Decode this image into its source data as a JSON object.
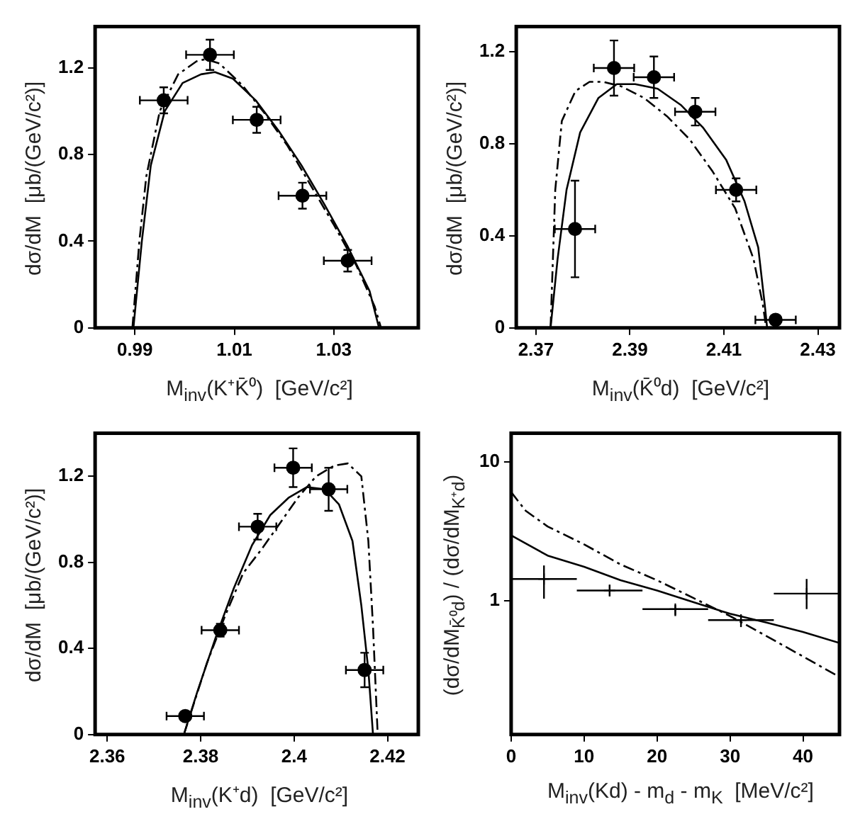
{
  "chart_data": [
    {
      "type": "scatter",
      "xlabel": "M$_{inv}$(K⁺K̄⁰)  [GeV/c²]",
      "ylabel": "dσ/dM  [μb/(GeV/c²)]",
      "xlim": [
        0.982,
        1.047
      ],
      "ylim": [
        0,
        1.39
      ],
      "xticks": [
        0.99,
        1.01,
        1.03
      ],
      "yticks": [
        0,
        0.4,
        0.8,
        1.2
      ],
      "grid": false,
      "legend": false,
      "series": [
        {
          "type": "scatter",
          "color": "#000000",
          "marker": "circle",
          "x": [
            0.9958,
            1.0051,
            1.0145,
            1.0237,
            1.0328
          ],
          "values": [
            1.05,
            1.26,
            0.96,
            0.61,
            0.31
          ],
          "errors": [
            0.06,
            0.07,
            0.06,
            0.06,
            0.05
          ],
          "xerrors": [
            0.0048,
            0.0048,
            0.0048,
            0.0048,
            0.0048
          ]
        },
        {
          "type": "line",
          "color": "#000000",
          "marker": "none",
          "line_style": "solid",
          "x": [
            0.9897,
            0.9914,
            0.9932,
            0.996,
            0.9996,
            1.0033,
            1.0061,
            1.0097,
            1.0143,
            1.0189,
            1.0235,
            1.0281,
            1.0327,
            1.0372,
            1.0391
          ],
          "values": [
            0,
            0.4,
            0.75,
            1.0,
            1.13,
            1.17,
            1.18,
            1.15,
            1.05,
            0.91,
            0.75,
            0.57,
            0.38,
            0.17,
            0
          ]
        },
        {
          "type": "line",
          "color": "#000000",
          "marker": "none",
          "line_style": "dashed",
          "x": [
            0.9895,
            0.9909,
            0.9923,
            0.995,
            0.9987,
            1.0024,
            1.0042,
            1.007,
            1.0116,
            1.0161,
            1.0207,
            1.0253,
            1.0299,
            1.0345,
            1.0382,
            1.0395
          ],
          "values": [
            0,
            0.4,
            0.7,
            1.0,
            1.17,
            1.23,
            1.24,
            1.22,
            1.12,
            0.99,
            0.84,
            0.66,
            0.48,
            0.29,
            0.1,
            0
          ]
        }
      ]
    },
    {
      "type": "scatter",
      "xlabel": "M$_{inv}$(K̄⁰d)  [GeV/c²]",
      "ylabel": "dσ/dM  [μb/(GeV/c²)]",
      "xlim": [
        2.3658,
        2.4346
      ],
      "ylim": [
        0,
        1.31
      ],
      "xticks": [
        2.37,
        2.39,
        2.41,
        2.43
      ],
      "yticks": [
        0,
        0.4,
        0.8,
        1.2
      ],
      "grid": false,
      "legend": false,
      "series": [
        {
          "type": "scatter",
          "color": "#000000",
          "marker": "circle",
          "x": [
            2.3783,
            2.3866,
            2.3951,
            2.4039,
            2.4126,
            2.421
          ],
          "values": [
            0.43,
            1.13,
            1.09,
            0.94,
            0.6,
            0.035
          ],
          "errors": [
            0.21,
            0.12,
            0.09,
            0.06,
            0.05,
            0.01
          ],
          "xerrors": [
            0.0043,
            0.0043,
            0.0043,
            0.0043,
            0.0043,
            0.0043
          ]
        },
        {
          "type": "line",
          "color": "#000000",
          "marker": "none",
          "line_style": "solid",
          "x": [
            2.3731,
            2.3746,
            2.3765,
            2.3794,
            2.3833,
            2.3872,
            2.3911,
            2.3959,
            2.4008,
            2.4056,
            2.4105,
            2.4144,
            2.4173,
            2.4187,
            2.4192
          ],
          "values": [
            0,
            0.3,
            0.6,
            0.85,
            1.0,
            1.06,
            1.06,
            1.04,
            0.97,
            0.87,
            0.73,
            0.55,
            0.35,
            0.1,
            0
          ]
        },
        {
          "type": "line",
          "color": "#000000",
          "marker": "none",
          "line_style": "dashed",
          "x": [
            2.3731,
            2.3741,
            2.3755,
            2.3784,
            2.3814,
            2.3843,
            2.3882,
            2.393,
            2.3979,
            2.4027,
            2.4076,
            2.4124,
            2.4163,
            2.4183,
            2.419
          ],
          "values": [
            0,
            0.6,
            0.9,
            1.03,
            1.07,
            1.07,
            1.05,
            1.0,
            0.92,
            0.82,
            0.68,
            0.52,
            0.3,
            0.1,
            0
          ]
        }
      ]
    },
    {
      "type": "scatter",
      "xlabel": "M$_{inv}$(K⁺d)  [GeV/c²]",
      "ylabel": "dσ/dM  [μb/(GeV/c²)]",
      "xlim": [
        2.3574,
        2.4266
      ],
      "ylim": [
        0,
        1.4
      ],
      "xticks": [
        2.36,
        2.38,
        2.4,
        2.42
      ],
      "yticks": [
        0,
        0.4,
        0.8,
        1.2
      ],
      "grid": false,
      "legend": false,
      "series": [
        {
          "type": "scatter",
          "color": "#000000",
          "marker": "circle",
          "x": [
            2.3767,
            2.3842,
            2.3922,
            2.3998,
            2.4074,
            2.4151
          ],
          "values": [
            0.086,
            0.485,
            0.966,
            1.24,
            1.14,
            0.3
          ],
          "errors": [
            null,
            0.03,
            0.06,
            0.09,
            0.1,
            0.08
          ],
          "xerrors": [
            0.004,
            0.004,
            0.004,
            0.004,
            0.004,
            0.004
          ]
        },
        {
          "type": "line",
          "color": "#000000",
          "marker": "none",
          "line_style": "solid",
          "x": [
            2.3764,
            2.3793,
            2.3832,
            2.3871,
            2.391,
            2.3949,
            2.3988,
            2.4027,
            2.4066,
            2.4096,
            2.4125,
            2.4144,
            2.4159,
            2.4169
          ],
          "values": [
            0,
            0.2,
            0.45,
            0.68,
            0.88,
            1.02,
            1.1,
            1.15,
            1.14,
            1.07,
            0.9,
            0.6,
            0.3,
            0
          ]
        },
        {
          "type": "line",
          "color": "#000000",
          "marker": "none",
          "line_style": "dashed",
          "x": [
            2.3764,
            2.3813,
            2.3852,
            2.3891,
            2.393,
            2.3969,
            2.4008,
            2.4047,
            2.4086,
            2.4115,
            2.4144,
            2.4159,
            2.4169,
            2.4179
          ],
          "values": [
            0,
            0.33,
            0.55,
            0.75,
            0.86,
            0.98,
            1.1,
            1.2,
            1.25,
            1.26,
            1.2,
            0.9,
            0.5,
            0
          ]
        }
      ]
    },
    {
      "type": "scatter",
      "xlabel": "M$_{inv}$(Kd) - m$_{d}$ - m$_{K}$  [MeV/c²]",
      "ylabel": "(dσ/dM$_{K̄⁰d}$) / (dσ/dM$_{K⁺d}$)",
      "xlim": [
        0,
        45
      ],
      "ylim": [
        0.11,
        16
      ],
      "xticks": [
        0,
        10,
        20,
        30,
        40
      ],
      "yticks": [
        1,
        10
      ],
      "log": true,
      "grid": false,
      "legend": false,
      "series": [
        {
          "type": "scatter",
          "color": "#000000",
          "marker": "cross",
          "x": [
            4.5,
            13.5,
            22.5,
            31.5,
            40.5
          ],
          "values": [
            1.44,
            1.19,
            0.875,
            0.73,
            1.13
          ],
          "errors": [
            [
              1.04,
              1.8
            ],
            [
              1.08,
              1.31
            ],
            [
              0.78,
              0.94
            ],
            [
              0.65,
              0.8
            ],
            [
              0.875,
              1.44
            ]
          ],
          "xerrors": [
            4.5,
            4.5,
            4.5,
            4.5,
            4.5
          ]
        },
        {
          "type": "line",
          "color": "#000000",
          "marker": "none",
          "line_style": "solid",
          "x": [
            0,
            5,
            10,
            15,
            20,
            25,
            30,
            35,
            40,
            45
          ],
          "values": [
            2.96,
            2.12,
            1.76,
            1.41,
            1.19,
            0.98,
            0.81,
            0.7,
            0.6,
            0.5
          ]
        },
        {
          "type": "line",
          "color": "#000000",
          "marker": "none",
          "line_style": "dashed",
          "x": [
            0,
            2,
            5,
            10,
            15,
            20,
            25,
            30,
            35,
            40,
            45
          ],
          "values": [
            6.05,
            4.44,
            3.43,
            2.55,
            1.83,
            1.41,
            1.05,
            0.78,
            0.56,
            0.4,
            0.285
          ]
        }
      ]
    }
  ]
}
